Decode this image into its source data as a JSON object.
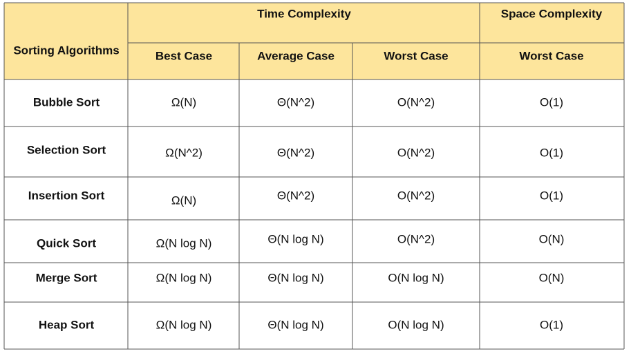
{
  "header": {
    "row_label": "Sorting Algorithms",
    "groups": [
      "Time Complexity",
      "Space Complexity"
    ],
    "columns": [
      "Best Case",
      "Average Case",
      "Worst Case",
      "Worst Case"
    ]
  },
  "table": {
    "rows": [
      [
        "Bubble Sort",
        "Ω(N)",
        "Θ(N^2)",
        "O(N^2)",
        "O(1)"
      ],
      [
        "Selection Sort",
        "Ω(N^2)",
        "Θ(N^2)",
        "O(N^2)",
        "O(1)"
      ],
      [
        "Insertion Sort",
        "Ω(N)",
        "Θ(N^2)",
        "O(N^2)",
        "O(1)"
      ],
      [
        "Quick Sort",
        "Ω(N log N)",
        "Θ(N log N)",
        "O(N^2)",
        "O(N)"
      ],
      [
        "Merge Sort",
        "Ω(N log N)",
        "Θ(N log N)",
        "O(N log N)",
        "O(N)"
      ],
      [
        "Heap Sort",
        "Ω(N log N)",
        "Θ(N log N)",
        "O(N log N)",
        "O(1)"
      ]
    ]
  }
}
